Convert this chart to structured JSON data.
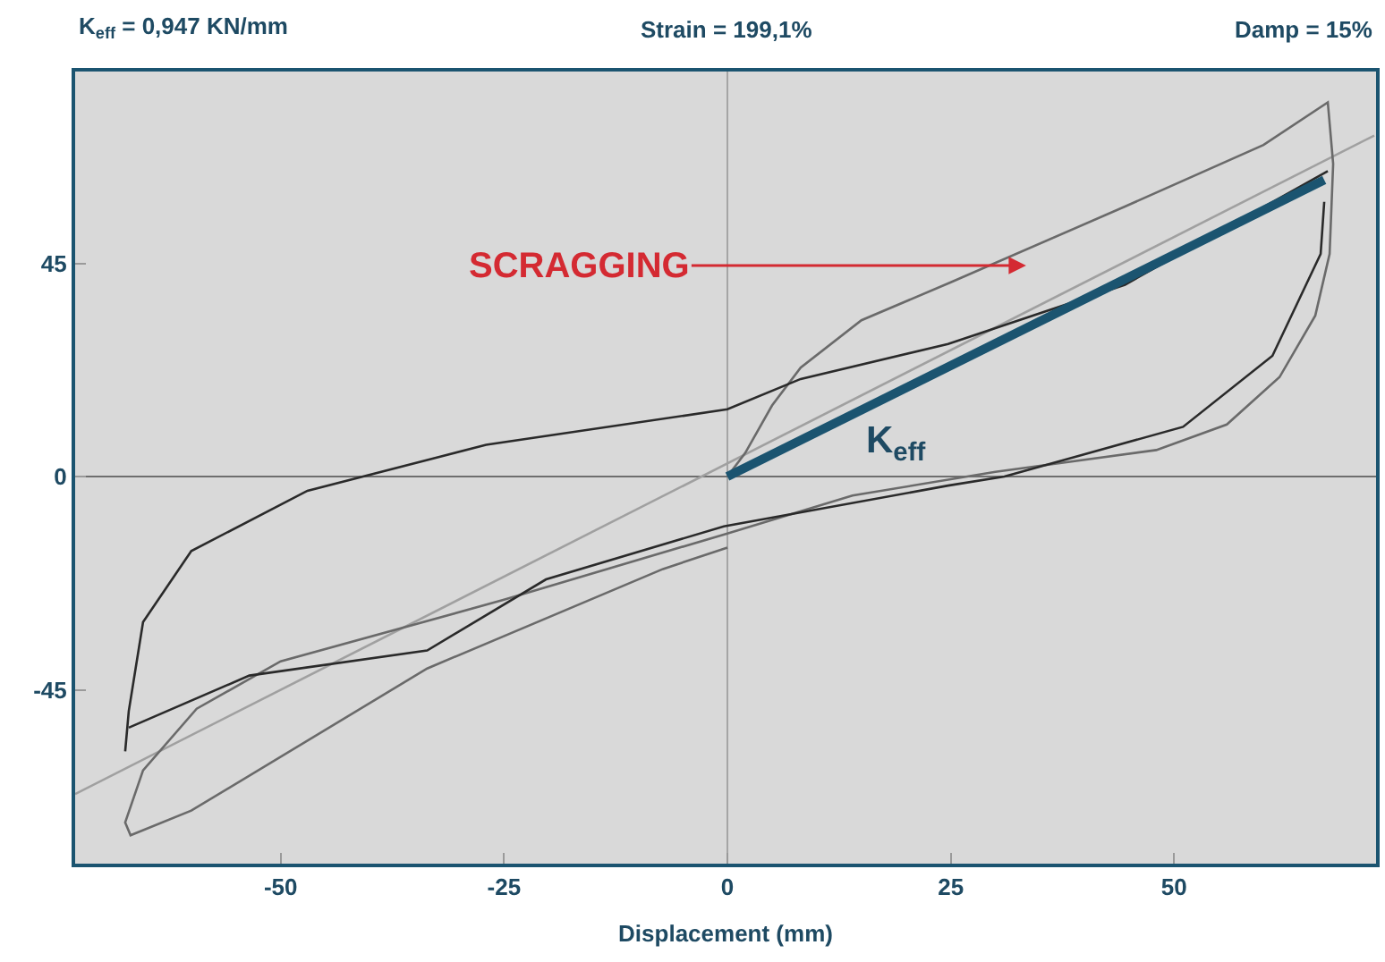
{
  "chart_data": {
    "type": "line",
    "xlabel": "Displacement (mm)",
    "annotations": [
      "K$_{eff}$ = 0,947 KN/mm",
      "Strain = 199,1%",
      "Damp = 15%",
      "SCRAGGING",
      "K$_{eff}$"
    ],
    "xlim": [
      -73,
      72.6
    ],
    "ylim": [
      -81.7,
      85.5
    ],
    "xticks": [
      -50,
      -25,
      0,
      25,
      50
    ],
    "yticks": [
      -45,
      0,
      45
    ],
    "grid": false,
    "marker": "none",
    "line_style": "solid",
    "ref_lines": [
      {
        "axis": "x",
        "value": 0,
        "label": null,
        "color": "#a5a5a5"
      },
      {
        "axis": "y",
        "value": 0,
        "label": null,
        "color": "#6e6e6e"
      }
    ],
    "series": [
      {
        "color": "#a0a0a0",
        "x": [
          -73,
          72.4
        ],
        "values": [
          -67,
          72
        ]
      },
      {
        "color": "#6a6a6a",
        "x": [
          0,
          2,
          5,
          8.2,
          15,
          25,
          44.5,
          60,
          67.2,
          67.8,
          67.4,
          65.8,
          61.8,
          55.9,
          48,
          30,
          14,
          0,
          -25,
          -50,
          -59.4,
          -65.4,
          -67.4,
          -66.8,
          -60,
          -33.6,
          -7.2,
          0
        ],
        "values": [
          0,
          5,
          15,
          23,
          33,
          41,
          57,
          70,
          79,
          66,
          47,
          34,
          21,
          11,
          5.6,
          1,
          -4,
          -12,
          -26,
          -39,
          -49,
          -62,
          -73,
          -75.7,
          -70.5,
          -40.5,
          -19.5,
          -15
        ]
      },
      {
        "color": "#2a2a2a",
        "x": [
          67.2,
          44.5,
          24.7,
          8.2,
          0,
          -27,
          -47,
          -60,
          -65.4,
          -67,
          -67.4
        ],
        "values": [
          64.5,
          40.5,
          28,
          20.6,
          14.2,
          6.7,
          -3,
          -15.7,
          -30.7,
          -49.5,
          -58
        ]
      },
      {
        "color": "#2a2a2a",
        "x": [
          -67,
          -53.5,
          -33.6,
          -20.3,
          -0.4,
          24.7,
          31,
          51,
          61,
          66.4,
          66.8
        ],
        "values": [
          -53,
          -42,
          -36.7,
          -21.7,
          -10.5,
          -1.9,
          0,
          10.5,
          25.5,
          47,
          58
        ]
      },
      {
        "color": "#1b5470",
        "x": [
          0,
          66.8
        ],
        "values": [
          0,
          62.6
        ]
      }
    ]
  }
}
